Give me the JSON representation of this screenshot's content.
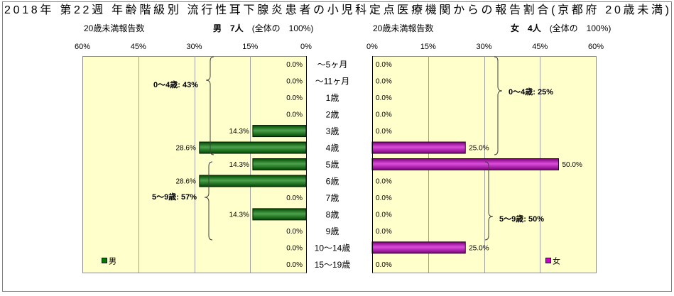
{
  "chart_data": {
    "type": "bar",
    "orientation": "horizontal",
    "arrangement": "back-to-back",
    "title": "2018年 第22週 年齢階級別 流行性耳下腺炎患者の小児科定点医療機関からの報告割合(京都府 20歳未満)",
    "categories": [
      "～5ヶ月",
      "～11ヶ月",
      "1歳",
      "2歳",
      "3歳",
      "4歳",
      "5歳",
      "6歳",
      "7歳",
      "8歳",
      "9歳",
      "10～14歳",
      "15～19歳"
    ],
    "xlim": [
      0,
      60
    ],
    "x_ticks": [
      0,
      15,
      30,
      45,
      60
    ],
    "x_tick_labels": [
      "0%",
      "15%",
      "30%",
      "45%",
      "60%"
    ],
    "grid": true,
    "plot_background": "#FFFFCC",
    "series": [
      {
        "name": "男",
        "side": "left",
        "color": "#007A00",
        "report_label": "20歳未満報告数",
        "report_count": "男　7人",
        "report_share": "(全体の　100%)",
        "values": [
          0.0,
          0.0,
          0.0,
          0.0,
          14.3,
          28.6,
          14.3,
          28.6,
          0.0,
          14.3,
          0.0,
          0.0,
          0.0
        ],
        "labels": [
          "0.0%",
          "0.0%",
          "0.0%",
          "0.0%",
          "14.3%",
          "28.6%",
          "14.3%",
          "28.6%",
          "0.0%",
          "14.3%",
          "0.0%",
          "0.0%",
          "0.0%"
        ],
        "group_labels": [
          "0～4歳: 43%",
          "5～9歳: 57%"
        ],
        "legend_position": "bottom-left"
      },
      {
        "name": "女",
        "side": "right",
        "color": "#CC00CC",
        "report_label": "20歳未満報告数",
        "report_count": "女　4人",
        "report_share": "(全体の　100%)",
        "values": [
          0.0,
          0.0,
          0.0,
          0.0,
          0.0,
          25.0,
          50.0,
          0.0,
          0.0,
          0.0,
          0.0,
          25.0,
          0.0
        ],
        "labels": [
          "0.0%",
          "0.0%",
          "0.0%",
          "0.0%",
          "0.0%",
          "25.0%",
          "50.0%",
          "0.0%",
          "0.0%",
          "0.0%",
          "0.0%",
          "25.0%",
          "0.0%"
        ],
        "group_labels": [
          "0～4歳: 25%",
          "5～9歳: 50%"
        ],
        "legend_position": "bottom-right"
      }
    ]
  }
}
